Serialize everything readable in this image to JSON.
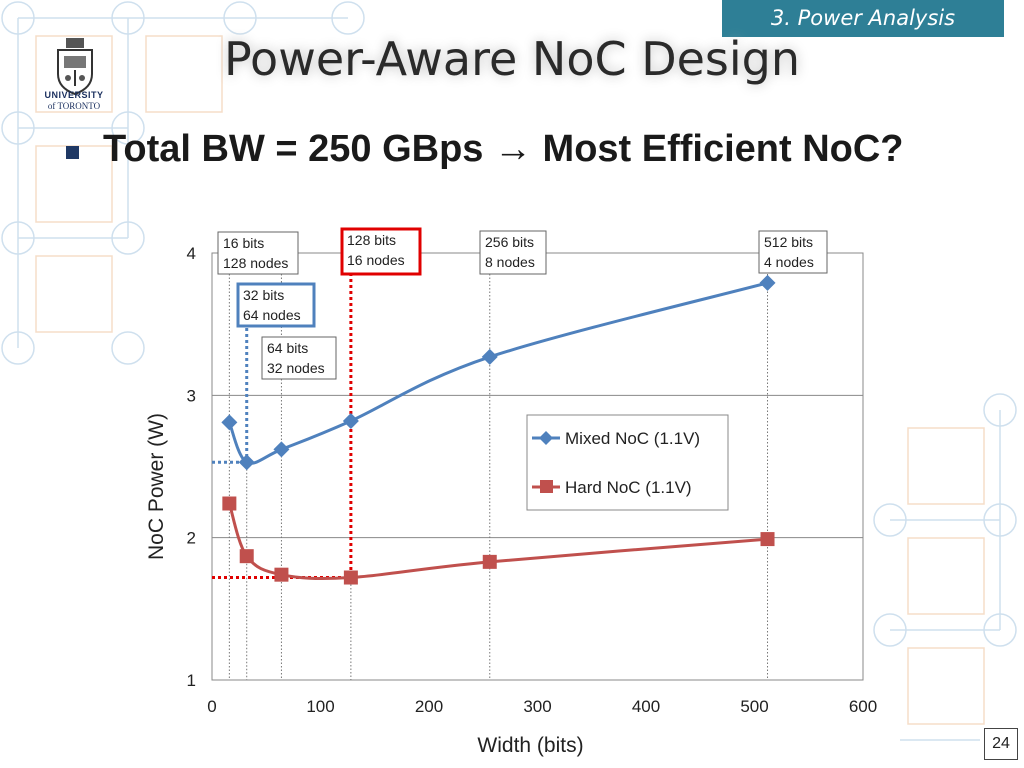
{
  "header": {
    "section": "3. Power Analysis",
    "title": "Power-Aware NoC Design",
    "logo_line1": "UNIVERSITY",
    "logo_line2": "of TORONTO"
  },
  "bullet": {
    "text": "Total BW = 250 GBps → Most Efficient NoC?"
  },
  "page_number": "24",
  "colors": {
    "accent": "#2e7f96",
    "mixed": "#4f81bd",
    "hard": "#c0504d",
    "highlight_red": "#e00000",
    "highlight_blue": "#4f81bd"
  },
  "chart_data": {
    "type": "line",
    "xlabel": "Width (bits)",
    "ylabel": "NoC Power (W)",
    "xlim": [
      0,
      600
    ],
    "ylim": [
      1,
      4
    ],
    "xticks": [
      0,
      100,
      200,
      300,
      400,
      500,
      600
    ],
    "yticks": [
      1,
      2,
      3,
      4
    ],
    "grid": "horizontal",
    "legend_position": "right",
    "series": [
      {
        "name": "Mixed NoC (1.1V)",
        "marker": "diamond",
        "x": [
          16,
          32,
          64,
          128,
          256,
          512
        ],
        "values": [
          2.81,
          2.53,
          2.62,
          2.82,
          3.27,
          3.79
        ]
      },
      {
        "name": "Hard NoC (1.1V)",
        "marker": "square",
        "x": [
          16,
          32,
          64,
          128,
          256,
          512
        ],
        "values": [
          2.24,
          1.87,
          1.74,
          1.72,
          1.83,
          1.99
        ]
      }
    ],
    "annotations": [
      {
        "line1": "16 bits",
        "line2": "128 nodes",
        "x": 16,
        "highlight": "none"
      },
      {
        "line1": "32 bits",
        "line2": "64 nodes",
        "x": 32,
        "highlight": "blue"
      },
      {
        "line1": "64 bits",
        "line2": "32 nodes",
        "x": 64,
        "highlight": "none"
      },
      {
        "line1": "128 bits",
        "line2": "16 nodes",
        "x": 128,
        "highlight": "red"
      },
      {
        "line1": "256 bits",
        "line2": "8 nodes",
        "x": 256,
        "highlight": "none"
      },
      {
        "line1": "512 bits",
        "line2": "4 nodes",
        "x": 512,
        "highlight": "none"
      }
    ],
    "minimum_markers": [
      {
        "series": "Mixed NoC (1.1V)",
        "x": 32,
        "y": 2.53
      },
      {
        "series": "Hard NoC (1.1V)",
        "x": 128,
        "y": 1.72
      }
    ]
  }
}
